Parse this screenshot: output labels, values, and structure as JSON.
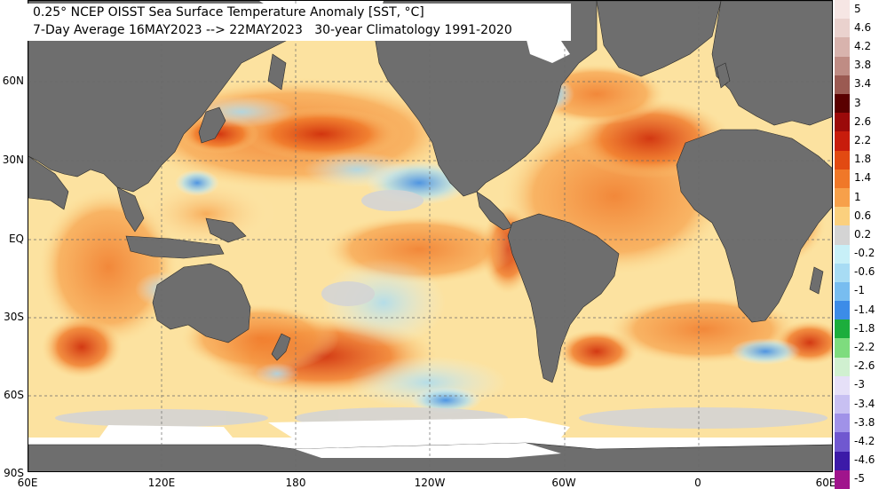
{
  "title": {
    "line1": "0.25° NCEP OISST Sea Surface Temperature Anomaly [SST, °C]",
    "line2": "7-Day Average 16MAY2023 --> 22MAY2023   30-year Climatology 1991-2020"
  },
  "lat_labels": [
    "60N",
    "30N",
    "EQ",
    "30S",
    "60S",
    "90S"
  ],
  "lon_labels": [
    "60E",
    "120E",
    "180",
    "120W",
    "60W",
    "0",
    "60E"
  ],
  "colorbar": {
    "labels": [
      "5",
      "4.6",
      "4.2",
      "3.8",
      "3.4",
      "3",
      "2.6",
      "2.2",
      "1.8",
      "1.4",
      "1",
      "0.6",
      "0.2",
      "-0.2",
      "-0.6",
      "-1",
      "-1.4",
      "-1.8",
      "-2.2",
      "-2.6",
      "-3",
      "-3.4",
      "-3.8",
      "-4.2",
      "-4.6",
      "-5"
    ],
    "colors": [
      "#f6e6e4",
      "#ead2ce",
      "#d8b3ad",
      "#bf8c84",
      "#9b5a52",
      "#5a0000",
      "#9b0a0a",
      "#c81c0c",
      "#e24a12",
      "#f07828",
      "#f7a04a",
      "#fbd07e",
      "#d4d4d4",
      "#c8f0f8",
      "#a8dcf4",
      "#78bdf0",
      "#3c8ce8",
      "#1cae3c",
      "#7edc7e",
      "#d0f0d0",
      "#e6e0f8",
      "#c8c0f2",
      "#a092e8",
      "#7058d0",
      "#3c1aa8",
      "#a0148c"
    ]
  },
  "colors": {
    "land": "#6e6e6e",
    "ice": "#ffffff",
    "neutral_ocean": "#d9d9d9"
  }
}
